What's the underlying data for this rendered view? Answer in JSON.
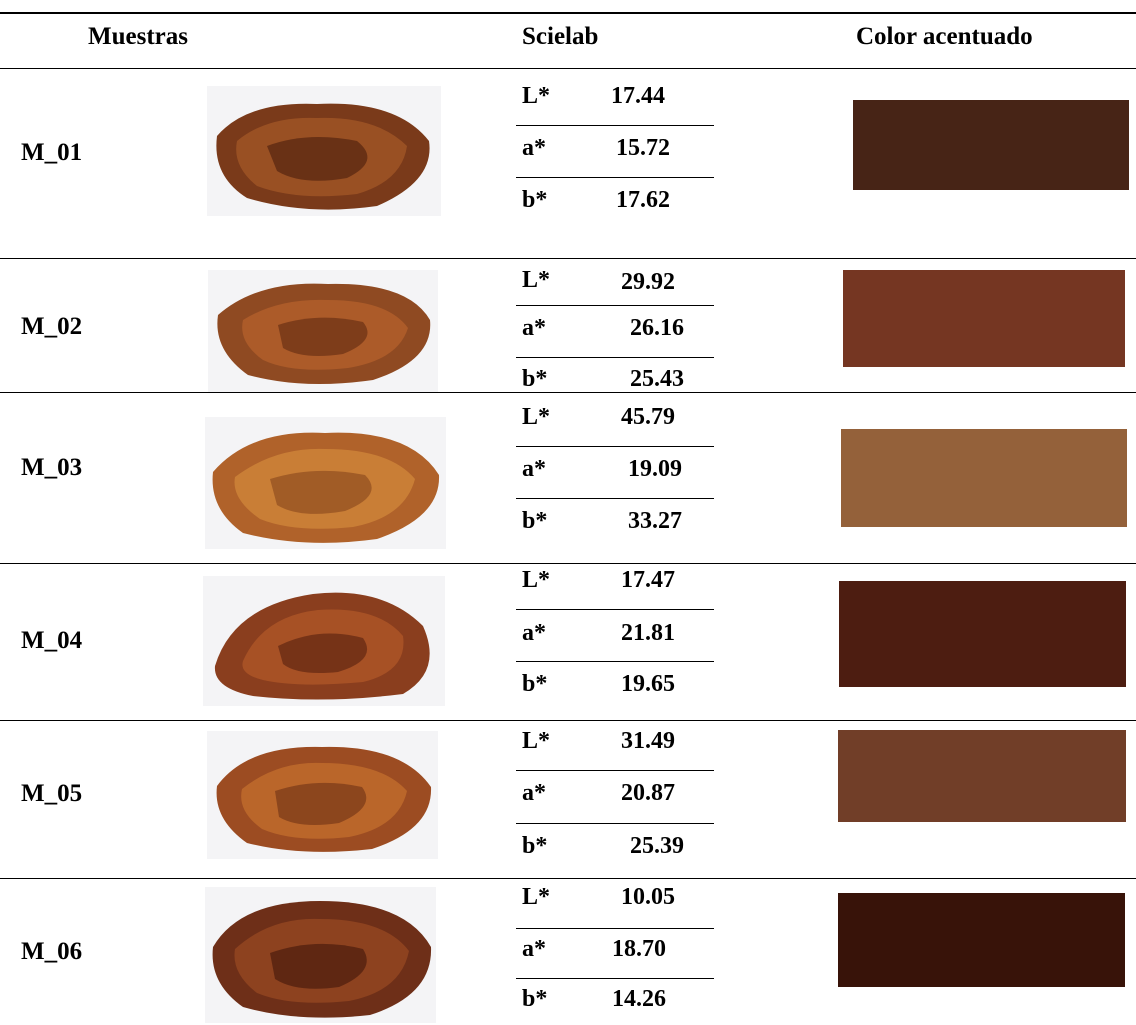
{
  "header": {
    "samples": "Muestras",
    "scielab": "Scielab",
    "accent_color": "Color acentuado"
  },
  "samples": [
    {
      "label": "M_01",
      "lab": [
        {
          "key": "L*",
          "value": "17.44"
        },
        {
          "key": "a*",
          "value": "15.72"
        },
        {
          "key": "b*",
          "value": "17.62"
        }
      ],
      "swatch_color": "#472416",
      "photo_tone": "#7a3a1a"
    },
    {
      "label": "M_02",
      "lab": [
        {
          "key": "L*",
          "value": "29.92"
        },
        {
          "key": "a*",
          "value": "26.16"
        },
        {
          "key": "b*",
          "value": "25.43"
        }
      ],
      "swatch_color": "#753622",
      "photo_tone": "#8f4a22"
    },
    {
      "label": "M_03",
      "lab": [
        {
          "key": "L*",
          "value": "45.79"
        },
        {
          "key": "a*",
          "value": "19.09"
        },
        {
          "key": "b*",
          "value": "33.27"
        }
      ],
      "swatch_color": "#94613a",
      "photo_tone": "#b0622a"
    },
    {
      "label": "M_04",
      "lab": [
        {
          "key": "L*",
          "value": "17.47"
        },
        {
          "key": "a*",
          "value": "21.81"
        },
        {
          "key": "b*",
          "value": "19.65"
        }
      ],
      "swatch_color": "#4d1d11",
      "photo_tone": "#8a3e1e"
    },
    {
      "label": "M_05",
      "lab": [
        {
          "key": "L*",
          "value": "31.49"
        },
        {
          "key": "a*",
          "value": "20.87"
        },
        {
          "key": "b*",
          "value": "25.39"
        }
      ],
      "swatch_color": "#713e28",
      "photo_tone": "#9c4c22"
    },
    {
      "label": "M_06",
      "lab": [
        {
          "key": "L*",
          "value": "10.05"
        },
        {
          "key": "a*",
          "value": "18.70"
        },
        {
          "key": "b*",
          "value": "14.26"
        }
      ],
      "swatch_color": "#381309",
      "photo_tone": "#6e2f18"
    }
  ]
}
